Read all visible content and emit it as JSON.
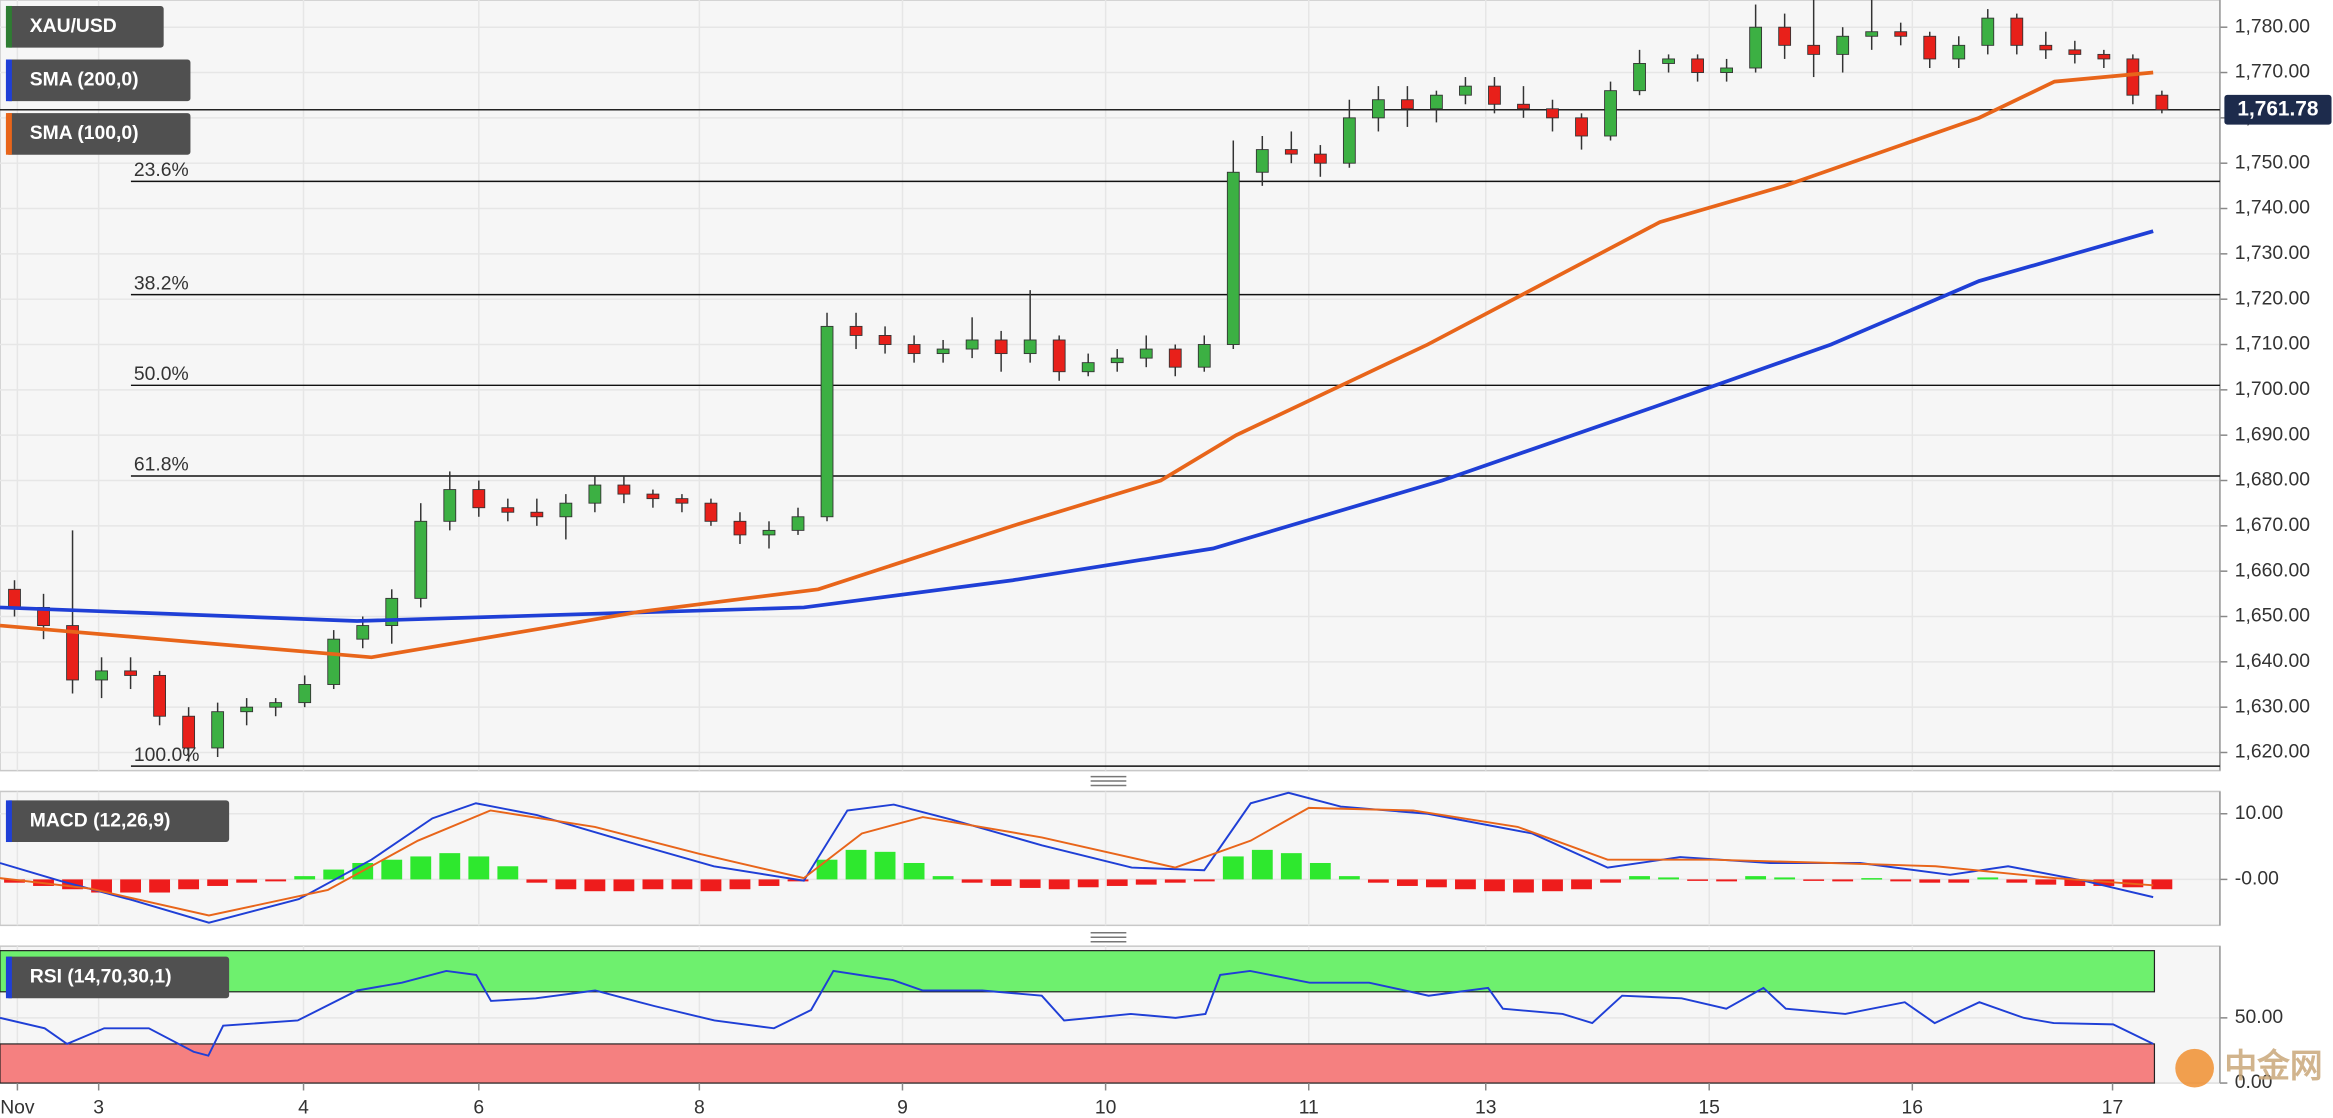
{
  "chart_data": [
    {
      "type": "candlestick",
      "title": "XAU/USD",
      "x": [
        0,
        1,
        2,
        3,
        4,
        5,
        6,
        7,
        8,
        9,
        10,
        11,
        12,
        13,
        14,
        15,
        16,
        17,
        18,
        19,
        20,
        21,
        22,
        23,
        24,
        25,
        26,
        27,
        28,
        29,
        30,
        31,
        32,
        33,
        34,
        35,
        36,
        37,
        38,
        39,
        40,
        41,
        42,
        43,
        44,
        45,
        46,
        47,
        48,
        49,
        50,
        51,
        52,
        53,
        54,
        55,
        56,
        57,
        58,
        59,
        60,
        61,
        62,
        63,
        64,
        65,
        66,
        67,
        68,
        69,
        70,
        71,
        72,
        73,
        74
      ],
      "open": [
        1656,
        1652,
        1648,
        1636,
        1638,
        1637,
        1628,
        1621,
        1629,
        1630,
        1631,
        1635,
        1645,
        1648,
        1654,
        1671,
        1678,
        1674,
        1673,
        1672,
        1675,
        1679,
        1677,
        1676,
        1675,
        1671,
        1668,
        1669,
        1672,
        1714,
        1712,
        1710,
        1708,
        1709,
        1711,
        1708,
        1711,
        1704,
        1706,
        1707,
        1709,
        1705,
        1710,
        1748,
        1753,
        1752,
        1750,
        1760,
        1764,
        1762,
        1765,
        1767,
        1763,
        1762,
        1760,
        1756,
        1766,
        1772,
        1773,
        1770,
        1771,
        1780,
        1776,
        1774,
        1778,
        1779,
        1778,
        1773,
        1776,
        1782,
        1776,
        1775,
        1774,
        1773,
        1765
      ],
      "high": [
        1658,
        1655,
        1669,
        1641,
        1641,
        1638,
        1630,
        1631,
        1632,
        1632,
        1637,
        1647,
        1650,
        1656,
        1675,
        1682,
        1680,
        1676,
        1676,
        1677,
        1681,
        1681,
        1678,
        1677,
        1676,
        1673,
        1671,
        1674,
        1717,
        1717,
        1714,
        1712,
        1711,
        1716,
        1713,
        1722,
        1712,
        1708,
        1709,
        1712,
        1710,
        1712,
        1755,
        1756,
        1757,
        1754,
        1764,
        1767,
        1767,
        1766,
        1769,
        1769,
        1767,
        1764,
        1761,
        1768,
        1775,
        1774,
        1774,
        1773,
        1785,
        1783,
        1786,
        1780,
        1786,
        1781,
        1779,
        1778,
        1784,
        1783,
        1779,
        1777,
        1775,
        1774,
        1766
      ],
      "low": [
        1650,
        1645,
        1633,
        1632,
        1634,
        1626,
        1618,
        1619,
        1626,
        1628,
        1630,
        1634,
        1643,
        1644,
        1652,
        1669,
        1672,
        1671,
        1670,
        1667,
        1673,
        1675,
        1674,
        1673,
        1670,
        1666,
        1665,
        1668,
        1671,
        1709,
        1708,
        1706,
        1706,
        1707,
        1704,
        1706,
        1702,
        1703,
        1704,
        1705,
        1703,
        1704,
        1709,
        1745,
        1750,
        1747,
        1749,
        1757,
        1758,
        1759,
        1763,
        1761,
        1760,
        1757,
        1753,
        1755,
        1765,
        1770,
        1768,
        1768,
        1770,
        1773,
        1769,
        1770,
        1775,
        1776,
        1771,
        1771,
        1774,
        1774,
        1773,
        1772,
        1771,
        1763,
        1761
      ],
      "close": [
        1652,
        1648,
        1636,
        1638,
        1637,
        1628,
        1621,
        1629,
        1630,
        1631,
        1635,
        1645,
        1648,
        1654,
        1671,
        1678,
        1674,
        1673,
        1672,
        1675,
        1679,
        1677,
        1676,
        1675,
        1671,
        1668,
        1669,
        1672,
        1714,
        1712,
        1710,
        1708,
        1709,
        1711,
        1708,
        1711,
        1704,
        1706,
        1707,
        1709,
        1705,
        1710,
        1748,
        1753,
        1752,
        1750,
        1760,
        1764,
        1762,
        1765,
        1767,
        1763,
        1762,
        1760,
        1756,
        1766,
        1772,
        1773,
        1770,
        1771,
        1780,
        1776,
        1774,
        1778,
        1779,
        1778,
        1773,
        1776,
        1782,
        1776,
        1775,
        1774,
        1773,
        1765,
        1761.78
      ],
      "up_color": "#3cb043",
      "down_color": "#e8201a",
      "series": [
        {
          "name": "SMA (200,0)",
          "color": "#1f3fd6",
          "x": [
            -0.5,
            11.8,
            27.2,
            34.4,
            41.3,
            49.2,
            56.4,
            62.6,
            67.7,
            73.7
          ],
          "values": [
            1652,
            1649,
            1652,
            1658,
            1665,
            1680,
            1696,
            1710,
            1724,
            1735
          ]
        },
        {
          "name": "SMA (100,0)",
          "color": "#e8651a",
          "x": [
            -0.5,
            12.3,
            21.5,
            27.7,
            34.4,
            39.5,
            42.1,
            48.7,
            56.7,
            61.0,
            67.7,
            70.3,
            73.7
          ],
          "values": [
            1648,
            1641,
            1651,
            1656,
            1670,
            1680,
            1690,
            1710,
            1737,
            1745,
            1760,
            1768,
            1770
          ]
        }
      ],
      "levels": [
        {
          "label": "23.6%",
          "value": 1746
        },
        {
          "label": "38.2%",
          "value": 1721
        },
        {
          "label": "50.0%",
          "value": 1701
        },
        {
          "label": "61.8%",
          "value": 1681
        },
        {
          "label": "100.0%",
          "value": 1617
        }
      ],
      "last_price": {
        "value": 1761.78,
        "label": "1,761.78"
      },
      "ylim": [
        1616,
        1786
      ],
      "yticks": [
        {
          "value": 1620,
          "label": "1,620.00"
        },
        {
          "value": 1630,
          "label": "1,630.00"
        },
        {
          "value": 1640,
          "label": "1,640.00"
        },
        {
          "value": 1650,
          "label": "1,650.00"
        },
        {
          "value": 1660,
          "label": "1,660.00"
        },
        {
          "value": 1670,
          "label": "1,670.00"
        },
        {
          "value": 1680,
          "label": "1,680.00"
        },
        {
          "value": 1690,
          "label": "1,690.00"
        },
        {
          "value": 1700,
          "label": "1,700.00"
        },
        {
          "value": 1710,
          "label": "1,710.00"
        },
        {
          "value": 1720,
          "label": "1,720.00"
        },
        {
          "value": 1730,
          "label": "1,730.00"
        },
        {
          "value": 1740,
          "label": "1,740.00"
        },
        {
          "value": 1750,
          "label": "1,750.00"
        },
        {
          "value": 1760,
          "label": "1,760.00"
        },
        {
          "value": 1770,
          "label": "1,770.00"
        },
        {
          "value": 1780,
          "label": "1,780.00"
        }
      ],
      "grid": true
    },
    {
      "type": "macd",
      "title": "MACD (12,26,9)",
      "series": [
        {
          "color": "#1f3fd6",
          "x": [
            -0.5,
            1.55,
            4.1,
            6.7,
            9.8,
            12.3,
            14.4,
            15.9,
            18.0,
            21.0,
            24.1,
            27.2,
            28.7,
            30.3,
            32.3,
            35.4,
            38.5,
            41.0,
            42.6,
            43.9,
            45.7,
            48.7,
            52.3,
            54.9,
            57.4,
            60.5,
            63.6,
            66.7,
            68.7,
            71.3,
            73.7
          ],
          "values": [
            2.5,
            -0.2,
            -3.2,
            -6.6,
            -3,
            3,
            9.3,
            11.6,
            9.8,
            5.9,
            2,
            -0.2,
            10.5,
            11.4,
            9.1,
            5.2,
            1.8,
            1.4,
            11.6,
            13.2,
            11.1,
            10,
            7,
            1.8,
            3.4,
            2.5,
            2.5,
            0.7,
            2,
            -0.2,
            -2.7
          ]
        },
        {
          "color": "#e8651a",
          "x": [
            -0.5,
            2.6,
            6.7,
            10.8,
            13.9,
            16.4,
            20.0,
            23.6,
            27.2,
            29.2,
            31.3,
            35.4,
            40.0,
            42.6,
            44.6,
            48.2,
            51.8,
            54.9,
            58.5,
            62.6,
            66.2,
            70.3,
            73.7
          ],
          "values": [
            0.2,
            -1.4,
            -5.5,
            -1.6,
            5.9,
            10.5,
            8,
            3.9,
            0.2,
            7,
            9.5,
            6.4,
            1.8,
            5.9,
            10.9,
            10.5,
            8,
            3,
            3,
            2.5,
            2,
            0.2,
            -0.9
          ]
        }
      ],
      "histogram": [
        -0.5,
        -1,
        -1.5,
        -2,
        -2,
        -2,
        -1.5,
        -1,
        -0.5,
        -0.3,
        0.5,
        1.5,
        2.5,
        3,
        3.5,
        4,
        3.5,
        2,
        -0.5,
        -1.5,
        -1.8,
        -1.8,
        -1.5,
        -1.5,
        -1.8,
        -1.5,
        -1,
        -0.3,
        3,
        4.5,
        4.2,
        2.5,
        0.5,
        -0.5,
        -1,
        -1.3,
        -1.5,
        -1.2,
        -1,
        -0.8,
        -0.5,
        -0.3,
        3.5,
        4.5,
        4,
        2.5,
        0.5,
        -0.5,
        -1,
        -1.2,
        -1.5,
        -1.8,
        -2,
        -1.8,
        -1.5,
        -0.5,
        0.5,
        0.3,
        -0.2,
        -0.3,
        0.5,
        0.3,
        -0.2,
        -0.3,
        0.2,
        -0.3,
        -0.5,
        -0.5,
        0.3,
        -0.5,
        -0.8,
        -1,
        -1,
        -1.2,
        -1.5
      ],
      "up_color": "#2ee82e",
      "down_color": "#ee1c1c",
      "ylim": [
        -7,
        13.4
      ],
      "yticks": [
        {
          "value": 10,
          "label": "10.00"
        },
        {
          "value": 0,
          "label": "-0.00"
        }
      ]
    },
    {
      "type": "rsi",
      "title": "RSI (14,70,30,1)",
      "series": [
        {
          "color": "#1f3fd6",
          "x": [
            -0.5,
            1.04,
            1.81,
            3.09,
            4.63,
            6.17,
            6.68,
            7.19,
            9.76,
            11.81,
            13.35,
            14.88,
            15.91,
            16.42,
            17.96,
            20.01,
            22.06,
            24.12,
            26.17,
            27.45,
            28.22,
            30.27,
            31.3,
            33.35,
            35.4,
            36.17,
            38.47,
            40.01,
            41.04,
            41.55,
            42.58,
            44.63,
            46.68,
            48.73,
            50.78,
            51.29,
            53.35,
            54.37,
            55.4,
            57.45,
            58.99,
            60.27,
            61.04,
            63.09,
            65.14,
            66.17,
            67.71,
            69.24,
            70.27,
            72.32,
            73.7
          ],
          "values": [
            50,
            42,
            30,
            42,
            42,
            24,
            21,
            44,
            48,
            71,
            77,
            86,
            83,
            63,
            65,
            71,
            59,
            48,
            42,
            56,
            86,
            79,
            71,
            71,
            67,
            48,
            53,
            50,
            53,
            83,
            86,
            77,
            77,
            67,
            73,
            57,
            53,
            46,
            67,
            65,
            57,
            73,
            57,
            53,
            62,
            46,
            62,
            50,
            46,
            45,
            30
          ]
        }
      ],
      "overbought": 70,
      "oversold": 30,
      "overbought_color": "#6ef06e",
      "oversold_color": "#f58080",
      "ylim": [
        0,
        105
      ],
      "yticks": [
        {
          "value": 50,
          "label": "50.00"
        },
        {
          "value": 0,
          "label": "0.00"
        }
      ],
      "xlim": [
        -0.5,
        76
      ],
      "xticks": [
        {
          "value": 0.1,
          "label": "Nov"
        },
        {
          "value": 2.9,
          "label": "3"
        },
        {
          "value": 9.96,
          "label": "4"
        },
        {
          "value": 16.0,
          "label": "6"
        },
        {
          "value": 23.6,
          "label": "8"
        },
        {
          "value": 30.6,
          "label": "9"
        },
        {
          "value": 37.6,
          "label": "10"
        },
        {
          "value": 44.6,
          "label": "11"
        },
        {
          "value": 50.7,
          "label": "13"
        },
        {
          "value": 58.4,
          "label": "15"
        },
        {
          "value": 65.4,
          "label": "16"
        },
        {
          "value": 72.3,
          "label": "17"
        }
      ]
    }
  ],
  "watermark": "中金网"
}
